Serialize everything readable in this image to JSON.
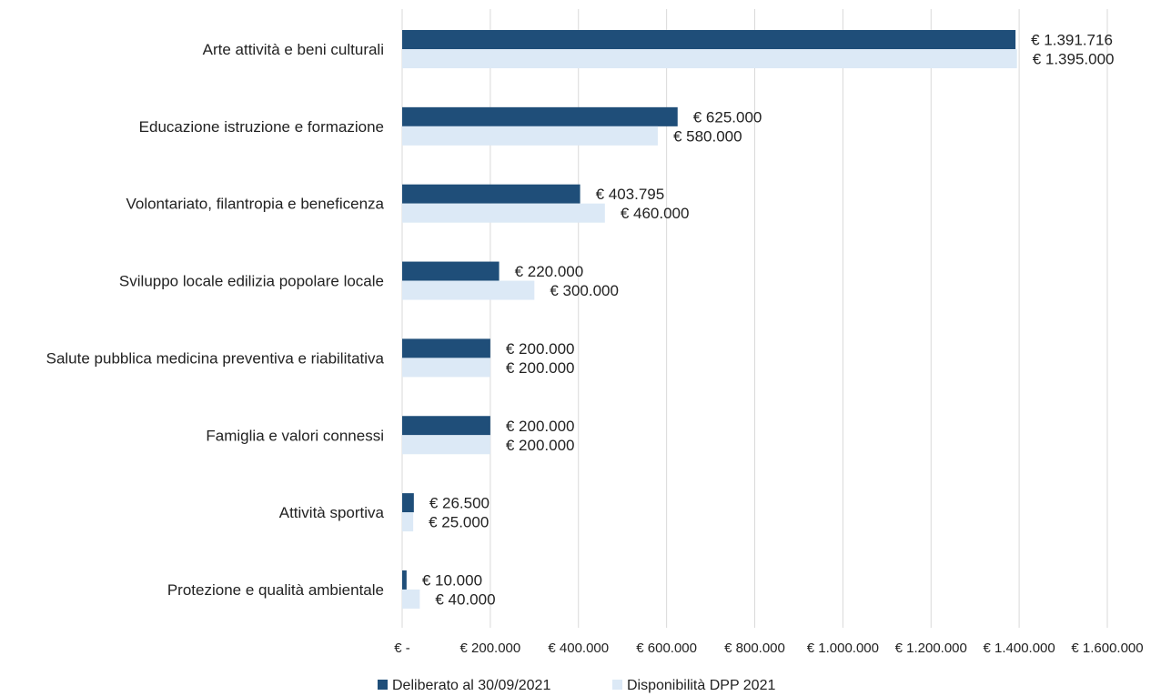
{
  "chart_data": {
    "type": "bar",
    "orientation": "horizontal",
    "title": "",
    "xlabel": "",
    "ylabel": "",
    "xlim": [
      0,
      1600000
    ],
    "grid": true,
    "legend_position": "bottom",
    "categories": [
      "Arte attività e beni culturali",
      "Educazione istruzione e formazione",
      "Volontariato, filantropia e beneficenza",
      "Sviluppo locale edilizia popolare locale",
      "Salute pubblica medicina preventiva e riabilitativa",
      "Famiglia e valori connessi",
      "Attività sportiva",
      "Protezione e qualità ambientale"
    ],
    "series": [
      {
        "name": "Deliberato al 30/09/2021",
        "color": "#1f4e79",
        "values": [
          1391716,
          625000,
          403795,
          220000,
          200000,
          200000,
          26500,
          10000
        ],
        "labels": [
          "€ 1.391.716",
          "€ 625.000",
          "€ 403.795",
          "€ 220.000",
          "€ 200.000",
          "€ 200.000",
          "€ 26.500",
          "€ 10.000"
        ]
      },
      {
        "name": "Disponibilità DPP 2021",
        "color": "#dce9f6",
        "values": [
          1395000,
          580000,
          460000,
          300000,
          200000,
          200000,
          25000,
          40000
        ],
        "labels": [
          "€ 1.395.000",
          "€ 580.000",
          "€ 460.000",
          "€ 300.000",
          "€ 200.000",
          "€ 200.000",
          "€ 25.000",
          "€ 40.000"
        ]
      }
    ],
    "ticks": [
      {
        "value": 0,
        "label": "€ -"
      },
      {
        "value": 200000,
        "label": "€ 200.000"
      },
      {
        "value": 400000,
        "label": "€ 400.000"
      },
      {
        "value": 600000,
        "label": "€ 600.000"
      },
      {
        "value": 800000,
        "label": "€ 800.000"
      },
      {
        "value": 1000000,
        "label": "€ 1.000.000"
      },
      {
        "value": 1200000,
        "label": "€ 1.200.000"
      },
      {
        "value": 1400000,
        "label": "€ 1.400.000"
      },
      {
        "value": 1600000,
        "label": "€ 1.600.000"
      }
    ],
    "gridline_color": "#d9d9d9"
  }
}
